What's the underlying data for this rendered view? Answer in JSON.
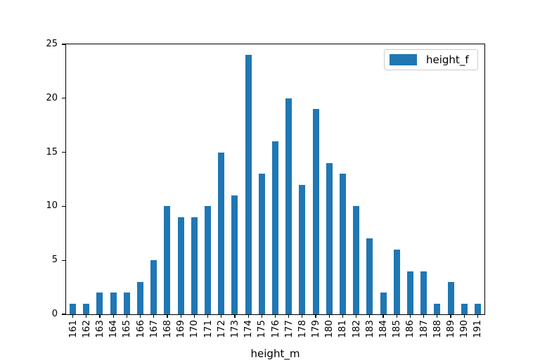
{
  "chart_data": {
    "type": "bar",
    "title": "",
    "xlabel": "height_m",
    "ylabel": "",
    "categories": [
      "161",
      "162",
      "163",
      "164",
      "165",
      "166",
      "167",
      "168",
      "169",
      "170",
      "171",
      "172",
      "173",
      "174",
      "175",
      "176",
      "177",
      "178",
      "179",
      "180",
      "181",
      "182",
      "183",
      "184",
      "185",
      "186",
      "187",
      "188",
      "189",
      "190",
      "191"
    ],
    "series": [
      {
        "name": "height_f",
        "values": [
          1,
          1,
          2,
          2,
          2,
          3,
          5,
          10,
          9,
          9,
          10,
          15,
          11,
          24,
          13,
          16,
          20,
          12,
          19,
          14,
          13,
          10,
          7,
          2,
          6,
          4,
          4,
          1,
          3,
          1,
          1
        ]
      }
    ],
    "ylim": [
      0,
      25
    ],
    "yticks": [
      0,
      5,
      10,
      15,
      20,
      25
    ],
    "bar_color": "#1f77b4",
    "axis_color": "#000000",
    "background_color": "#ffffff",
    "grid": false,
    "legend": {
      "label": "height_f",
      "position": "upper-right",
      "border_color": "#cccccc"
    }
  }
}
